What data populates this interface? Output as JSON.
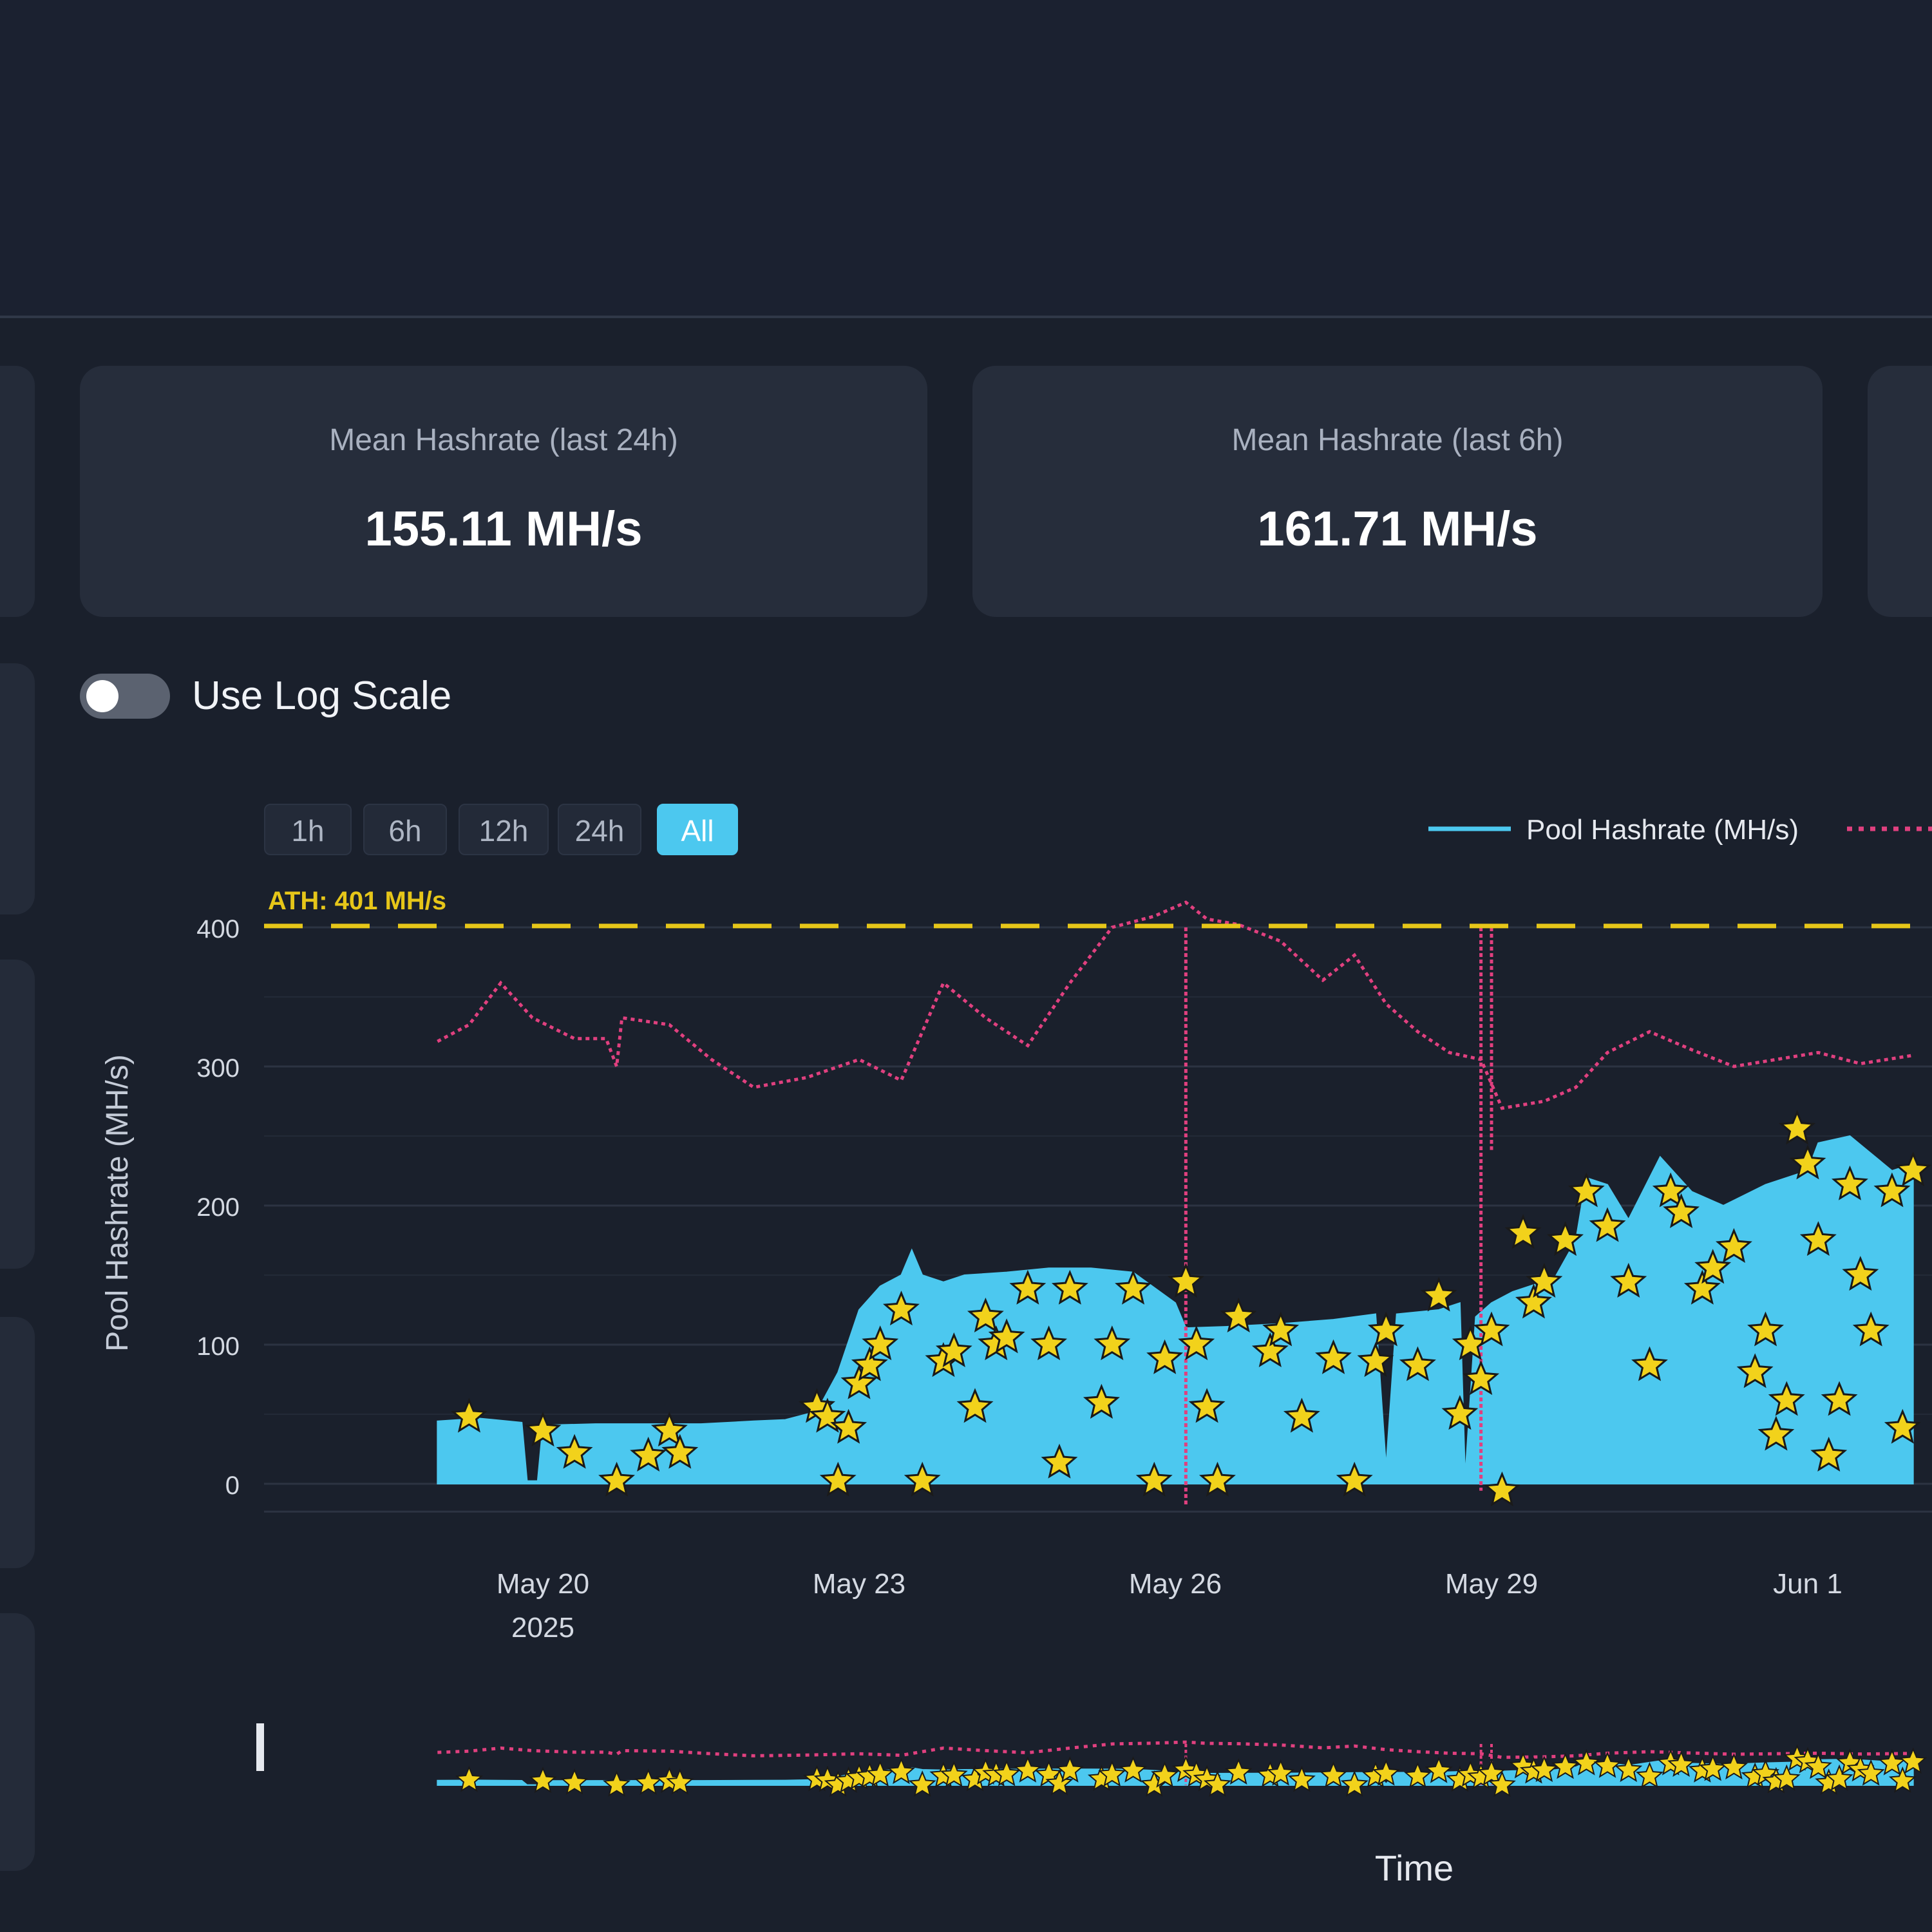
{
  "stats": [
    {
      "label": "Mean Hashrate (last 24h)",
      "value": "155.11 MH/s"
    },
    {
      "label": "Mean Hashrate (last 6h)",
      "value": "161.71 MH/s"
    }
  ],
  "log_scale_toggle": {
    "label": "Use Log Scale",
    "checked": false
  },
  "range_buttons": [
    {
      "label": "1h",
      "active": false
    },
    {
      "label": "6h",
      "active": false
    },
    {
      "label": "12h",
      "active": false
    },
    {
      "label": "24h",
      "active": false
    },
    {
      "label": "All",
      "active": true
    }
  ],
  "colors": {
    "pool": "#4cc8ef",
    "network": "#e0407f",
    "ath": "#e6c619",
    "star": "#f2d21b"
  },
  "chart_data": {
    "type": "area",
    "ylabel": "Pool Hashrate (MH/s)",
    "xlabel": "Time",
    "ylim": [
      0,
      420
    ],
    "yticks": [
      0,
      100,
      200,
      300,
      400
    ],
    "xticks": [
      {
        "day": 20,
        "label": "May 20",
        "sublabel": "2025"
      },
      {
        "day": 23,
        "label": "May 23",
        "sublabel": ""
      },
      {
        "day": 26,
        "label": "May 26",
        "sublabel": ""
      },
      {
        "day": 29,
        "label": "May 29",
        "sublabel": ""
      },
      {
        "day": 32,
        "label": "Jun 1",
        "sublabel": ""
      }
    ],
    "legend": [
      {
        "name": "Pool Hashrate (MH/s)"
      }
    ],
    "ath": {
      "value": 401,
      "label": "ATH: 401 MH/s"
    },
    "series_pool": [
      [
        19.0,
        45
      ],
      [
        19.4,
        47
      ],
      [
        19.8,
        44
      ],
      [
        19.85,
        2
      ],
      [
        19.95,
        2
      ],
      [
        20.0,
        42
      ],
      [
        20.5,
        43
      ],
      [
        21.0,
        43
      ],
      [
        21.5,
        43
      ],
      [
        22.0,
        45
      ],
      [
        22.3,
        46
      ],
      [
        22.6,
        52
      ],
      [
        22.8,
        80
      ],
      [
        23.0,
        125
      ],
      [
        23.2,
        142
      ],
      [
        23.4,
        150
      ],
      [
        23.5,
        168
      ],
      [
        23.6,
        150
      ],
      [
        23.8,
        145
      ],
      [
        24.0,
        150
      ],
      [
        24.4,
        152
      ],
      [
        24.8,
        155
      ],
      [
        25.2,
        155
      ],
      [
        25.6,
        152
      ],
      [
        26.0,
        130
      ],
      [
        26.1,
        112
      ],
      [
        26.5,
        113
      ],
      [
        27.0,
        115
      ],
      [
        27.5,
        118
      ],
      [
        27.9,
        122
      ],
      [
        28.0,
        12
      ],
      [
        28.1,
        122
      ],
      [
        28.5,
        125
      ],
      [
        28.7,
        130
      ],
      [
        28.75,
        5
      ],
      [
        28.85,
        120
      ],
      [
        29.0,
        130
      ],
      [
        29.2,
        138
      ],
      [
        29.6,
        148
      ],
      [
        29.8,
        175
      ],
      [
        29.9,
        220
      ],
      [
        30.1,
        215
      ],
      [
        30.3,
        190
      ],
      [
        30.6,
        235
      ],
      [
        30.9,
        210
      ],
      [
        31.2,
        200
      ],
      [
        31.6,
        215
      ],
      [
        32.0,
        225
      ],
      [
        32.1,
        245
      ],
      [
        32.4,
        250
      ],
      [
        32.8,
        225
      ],
      [
        33.0,
        230
      ]
    ],
    "series_network": [
      [
        19.0,
        318
      ],
      [
        19.3,
        330
      ],
      [
        19.6,
        360
      ],
      [
        19.9,
        335
      ],
      [
        20.3,
        320
      ],
      [
        20.6,
        320
      ],
      [
        20.7,
        300
      ],
      [
        20.75,
        335
      ],
      [
        21.2,
        330
      ],
      [
        21.6,
        305
      ],
      [
        22.0,
        285
      ],
      [
        22.5,
        292
      ],
      [
        23.0,
        305
      ],
      [
        23.4,
        290
      ],
      [
        23.8,
        360
      ],
      [
        24.2,
        335
      ],
      [
        24.6,
        315
      ],
      [
        25.0,
        360
      ],
      [
        25.4,
        400
      ],
      [
        25.8,
        408
      ],
      [
        26.1,
        418
      ],
      [
        26.3,
        406
      ],
      [
        26.6,
        402
      ],
      [
        27.0,
        390
      ],
      [
        27.4,
        362
      ],
      [
        27.7,
        380
      ],
      [
        28.0,
        345
      ],
      [
        28.3,
        325
      ],
      [
        28.6,
        310
      ],
      [
        28.9,
        305
      ],
      [
        29.1,
        270
      ],
      [
        29.5,
        275
      ],
      [
        29.8,
        285
      ],
      [
        30.1,
        310
      ],
      [
        30.5,
        325
      ],
      [
        30.9,
        312
      ],
      [
        31.3,
        300
      ],
      [
        31.7,
        305
      ],
      [
        32.1,
        310
      ],
      [
        32.5,
        302
      ],
      [
        33.0,
        308
      ]
    ],
    "network_spikes": [
      {
        "day": 26.1,
        "low": -15
      },
      {
        "day": 28.9,
        "low": -5
      },
      {
        "day": 29.0,
        "low": 240
      }
    ],
    "blocks": [
      [
        19.3,
        48
      ],
      [
        20.0,
        38
      ],
      [
        20.3,
        22
      ],
      [
        20.7,
        2
      ],
      [
        21.0,
        20
      ],
      [
        21.2,
        38
      ],
      [
        21.3,
        22
      ],
      [
        22.6,
        55
      ],
      [
        22.7,
        48
      ],
      [
        22.8,
        2
      ],
      [
        22.9,
        40
      ],
      [
        23.0,
        72
      ],
      [
        23.1,
        85
      ],
      [
        23.2,
        100
      ],
      [
        23.4,
        125
      ],
      [
        23.6,
        2
      ],
      [
        23.8,
        88
      ],
      [
        23.9,
        95
      ],
      [
        24.1,
        55
      ],
      [
        24.2,
        120
      ],
      [
        24.3,
        100
      ],
      [
        24.4,
        105
      ],
      [
        24.6,
        140
      ],
      [
        24.8,
        100
      ],
      [
        24.9,
        15
      ],
      [
        25.0,
        140
      ],
      [
        25.3,
        58
      ],
      [
        25.4,
        100
      ],
      [
        25.6,
        140
      ],
      [
        25.8,
        2
      ],
      [
        25.9,
        90
      ],
      [
        26.1,
        145
      ],
      [
        26.2,
        100
      ],
      [
        26.3,
        55
      ],
      [
        26.4,
        2
      ],
      [
        26.6,
        120
      ],
      [
        26.9,
        95
      ],
      [
        27.0,
        110
      ],
      [
        27.2,
        48
      ],
      [
        27.5,
        90
      ],
      [
        27.7,
        2
      ],
      [
        27.9,
        88
      ],
      [
        28.0,
        110
      ],
      [
        28.3,
        85
      ],
      [
        28.5,
        135
      ],
      [
        28.7,
        50
      ],
      [
        28.8,
        100
      ],
      [
        28.9,
        75
      ],
      [
        29.0,
        110
      ],
      [
        29.1,
        -5
      ],
      [
        29.3,
        180
      ],
      [
        29.4,
        130
      ],
      [
        29.5,
        145
      ],
      [
        29.7,
        175
      ],
      [
        29.9,
        210
      ],
      [
        30.1,
        185
      ],
      [
        30.3,
        145
      ],
      [
        30.5,
        85
      ],
      [
        30.7,
        210
      ],
      [
        30.8,
        195
      ],
      [
        31.0,
        140
      ],
      [
        31.1,
        155
      ],
      [
        31.3,
        170
      ],
      [
        31.5,
        80
      ],
      [
        31.6,
        110
      ],
      [
        31.7,
        35
      ],
      [
        31.8,
        60
      ],
      [
        31.9,
        255
      ],
      [
        32.0,
        230
      ],
      [
        32.1,
        175
      ],
      [
        32.2,
        20
      ],
      [
        32.3,
        60
      ],
      [
        32.4,
        215
      ],
      [
        32.5,
        150
      ],
      [
        32.6,
        110
      ],
      [
        32.8,
        210
      ],
      [
        32.9,
        40
      ],
      [
        33.0,
        225
      ]
    ]
  }
}
